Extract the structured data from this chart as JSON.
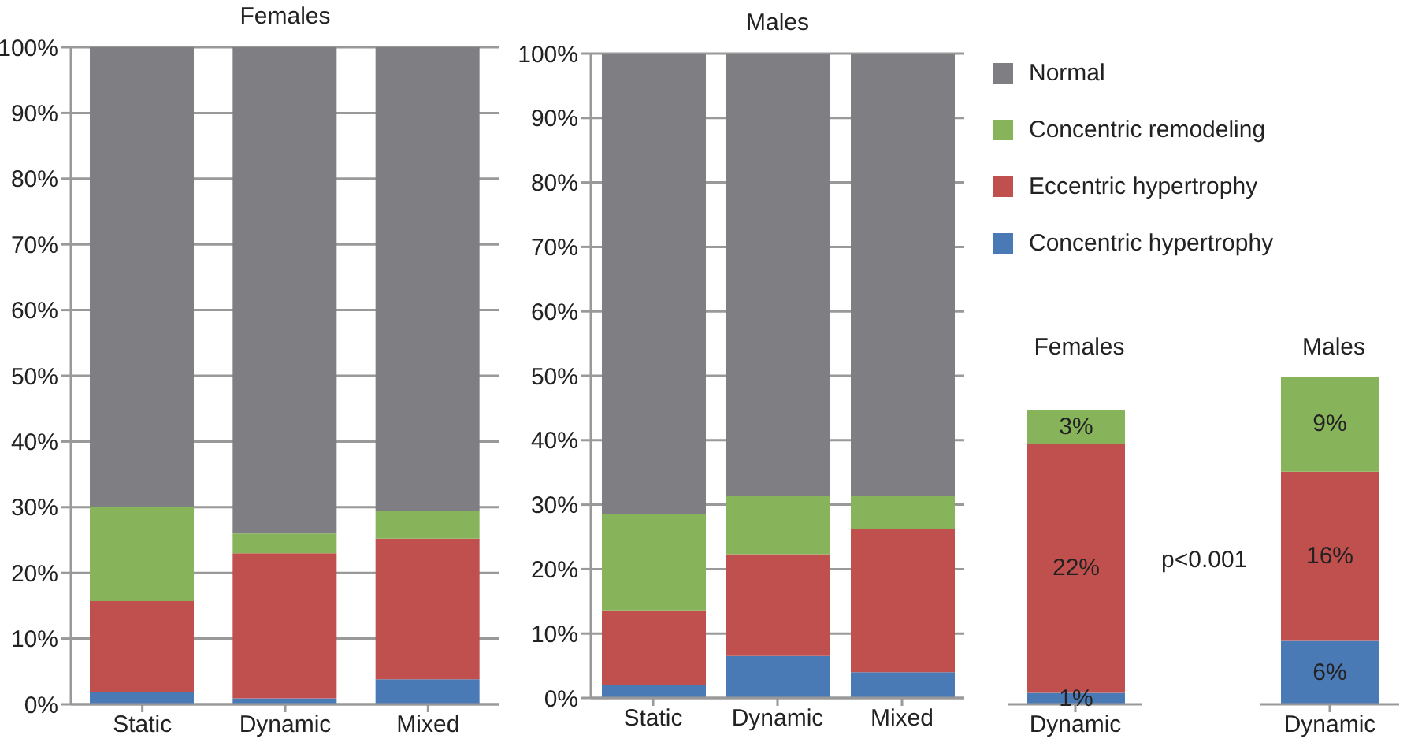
{
  "chart_data": [
    {
      "type": "bar",
      "title": "Females",
      "categories": [
        "Static",
        "Dynamic",
        "Mixed"
      ],
      "stacked": true,
      "ylim": [
        0,
        100
      ],
      "yticks": [
        {
          "value": 0,
          "label": "0%"
        },
        {
          "value": 10,
          "label": "10%"
        },
        {
          "value": 20,
          "label": "20%"
        },
        {
          "value": 30,
          "label": "30%"
        },
        {
          "value": 40,
          "label": "40%"
        },
        {
          "value": 50,
          "label": "50%"
        },
        {
          "value": 60,
          "label": "60%"
        },
        {
          "value": 70,
          "label": "70%"
        },
        {
          "value": 80,
          "label": "80%"
        },
        {
          "value": 90,
          "label": "90%"
        },
        {
          "value": 100,
          "label": "100%"
        }
      ],
      "grid": "y",
      "series": [
        {
          "color": "#4a7ab5",
          "values": [
            1.8,
            0.9,
            3.8
          ]
        },
        {
          "color": "#c0504d",
          "values": [
            13.9,
            22.1,
            21.4
          ]
        },
        {
          "color": "#87b35a",
          "values": [
            14.3,
            3,
            4.3
          ]
        },
        {
          "color": "#7f7f83",
          "values": [
            70,
            74,
            70.5
          ]
        }
      ]
    },
    {
      "type": "bar",
      "title": "Males",
      "categories": [
        "Static",
        "Dynamic",
        "Mixed"
      ],
      "stacked": true,
      "ylim": [
        0,
        100
      ],
      "yticks": [
        {
          "value": 0,
          "label": "0%"
        },
        {
          "value": 10,
          "label": "10%"
        },
        {
          "value": 20,
          "label": "20%"
        },
        {
          "value": 30,
          "label": "30%"
        },
        {
          "value": 40,
          "label": "40%"
        },
        {
          "value": 50,
          "label": "50%"
        },
        {
          "value": 60,
          "label": "60%"
        },
        {
          "value": 70,
          "label": "70%"
        },
        {
          "value": 80,
          "label": "80%"
        },
        {
          "value": 90,
          "label": "90%"
        },
        {
          "value": 100,
          "label": "100%"
        }
      ],
      "grid": "y",
      "legend": "right",
      "series": [
        {
          "name": "Concentric hypertrophy",
          "color": "#4a7ab5",
          "values": [
            2,
            6.5,
            4
          ]
        },
        {
          "name": "Eccentric hypertrophy",
          "color": "#c0504d",
          "values": [
            11.6,
            15.8,
            22.2
          ]
        },
        {
          "name": "Concentric remodeling",
          "color": "#87b35a",
          "values": [
            15,
            9,
            5.1
          ]
        },
        {
          "name": "Normal",
          "color": "#7f7f83",
          "values": [
            71.4,
            68.7,
            68.7
          ]
        }
      ]
    },
    {
      "type": "bar",
      "title": "Females",
      "categories": [
        "Dynamic"
      ],
      "stacked": true,
      "tick_labels": "x",
      "annotations": [
        "p<0.001"
      ],
      "series": [
        {
          "color": "#4a7ab5",
          "values": [
            1
          ],
          "value_labels": [
            "1%"
          ]
        },
        {
          "color": "#c0504d",
          "values": [
            22
          ],
          "value_labels": [
            "22%"
          ]
        },
        {
          "color": "#87b35a",
          "values": [
            3
          ],
          "value_labels": [
            "3%"
          ]
        }
      ]
    },
    {
      "type": "bar",
      "title": "Males",
      "categories": [
        "Dynamic"
      ],
      "stacked": true,
      "tick_labels": "x",
      "series": [
        {
          "color": "#4a7ab5",
          "values": [
            6
          ],
          "value_labels": [
            "6%"
          ]
        },
        {
          "color": "#c0504d",
          "values": [
            16
          ],
          "value_labels": [
            "16%"
          ]
        },
        {
          "color": "#87b35a",
          "values": [
            9
          ],
          "value_labels": [
            "9%"
          ]
        }
      ]
    }
  ]
}
